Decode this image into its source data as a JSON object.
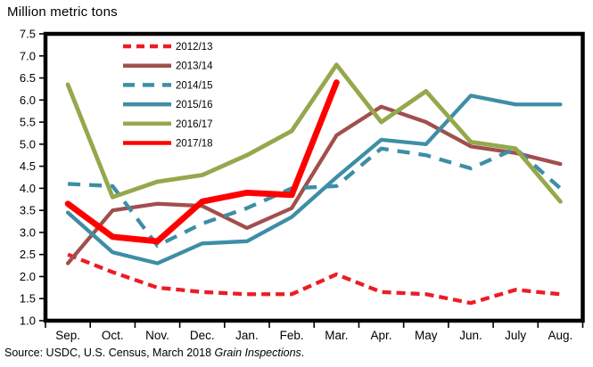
{
  "title": "Million metric tons",
  "source": {
    "prefix": "Source: USDC, U.S. Census, March 2018 ",
    "italic": "Grain Inspections",
    "suffix": "."
  },
  "chart_data": {
    "type": "line",
    "title": "Million metric tons",
    "xlabel": "",
    "ylabel": "",
    "ylim": [
      1.0,
      7.5
    ],
    "ytick_step": 0.5,
    "grid": false,
    "legend_position": "top-left-inside",
    "axis_color": "#000000",
    "categories": [
      "Sep.",
      "Oct.",
      "Nov.",
      "Dec.",
      "Jan.",
      "Feb.",
      "Mar.",
      "Apr.",
      "May",
      "Jun.",
      "July",
      "Aug."
    ],
    "series": [
      {
        "name": "2012/13",
        "color": "#ED1C24",
        "style": "dashed",
        "width": 4.3,
        "values": [
          2.5,
          2.1,
          1.75,
          1.65,
          1.6,
          1.6,
          2.05,
          1.65,
          1.6,
          1.4,
          1.7,
          1.6
        ]
      },
      {
        "name": "2013/14",
        "color": "#A14F4D",
        "style": "solid",
        "width": 4.3,
        "values": [
          2.3,
          3.5,
          3.65,
          3.6,
          3.1,
          3.55,
          5.2,
          5.85,
          5.5,
          4.95,
          4.8,
          4.55
        ]
      },
      {
        "name": "2014/15",
        "color": "#3D8EA6",
        "style": "dashed-long",
        "width": 4.3,
        "values": [
          4.1,
          4.05,
          2.7,
          3.2,
          3.55,
          4.0,
          4.05,
          4.9,
          4.75,
          4.45,
          4.9,
          4.0
        ]
      },
      {
        "name": "2015/16",
        "color": "#3D8EA6",
        "style": "solid",
        "width": 4.3,
        "values": [
          3.45,
          2.55,
          2.3,
          2.75,
          2.8,
          3.35,
          4.25,
          5.1,
          5.0,
          6.1,
          5.9,
          5.9
        ]
      },
      {
        "name": "2016/17",
        "color": "#94A84C",
        "style": "solid",
        "width": 4.8,
        "values": [
          6.35,
          3.8,
          4.15,
          4.3,
          4.75,
          5.3,
          6.8,
          5.5,
          6.2,
          5.05,
          4.9,
          3.7
        ]
      },
      {
        "name": "2017/18",
        "color": "#FF0000",
        "style": "solid",
        "width": 6.8,
        "values": [
          3.65,
          2.9,
          2.8,
          3.7,
          3.9,
          3.85,
          6.4,
          null,
          null,
          null,
          null,
          null
        ]
      }
    ]
  }
}
